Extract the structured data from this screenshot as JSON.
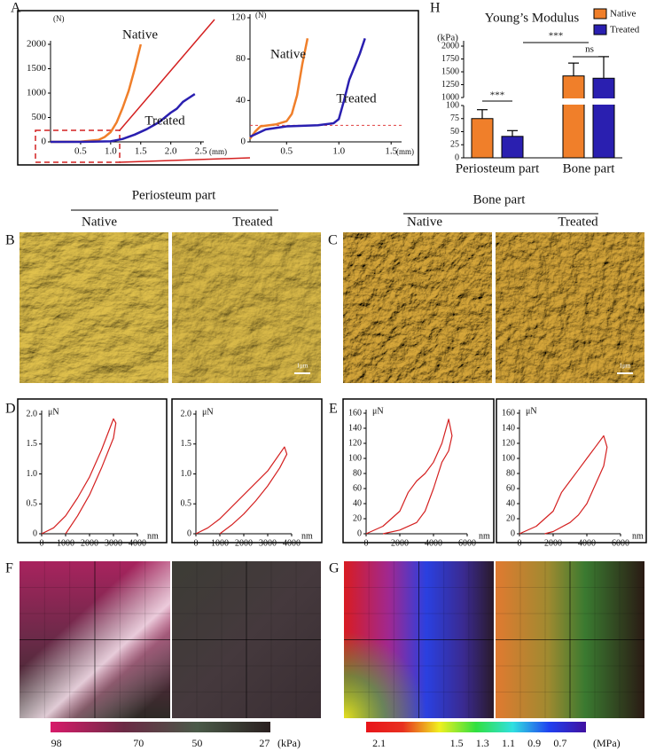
{
  "panel_letters": [
    "A",
    "B",
    "C",
    "D",
    "E",
    "F",
    "G",
    "H"
  ],
  "afm": {
    "periosteum": {
      "title": "Periosteum part",
      "conditions": [
        "Native",
        "Treated"
      ],
      "scale_bar": "1μm"
    },
    "bone": {
      "title": "Bone part",
      "conditions": [
        "Native",
        "Treated"
      ],
      "scale_bar": "1μm"
    }
  },
  "chart_data": [
    {
      "type": "line",
      "xlabel": "(mm)",
      "ylabel": "(N)",
      "xlim": [
        0,
        2.55
      ],
      "ylim": [
        0,
        2000
      ],
      "xticks": [
        0.5,
        {
          "value": 1,
          "label": "1.0"
        },
        1.5,
        {
          "value": 2,
          "label": "2.0"
        },
        2.5
      ],
      "yticks": [
        0,
        500,
        1000,
        1500,
        2000
      ],
      "series": [
        {
          "name": "Native",
          "color": "#f07f2a",
          "x": [
            0,
            0.5,
            0.8,
            0.9,
            1.0,
            1.1,
            1.2,
            1.3,
            1.4,
            1.5
          ],
          "values": [
            0,
            5,
            40,
            100,
            200,
            400,
            700,
            1050,
            1500,
            2000
          ]
        },
        {
          "name": "Treated",
          "color": "#2a1fb0",
          "x": [
            0,
            0.5,
            1.0,
            1.2,
            1.4,
            1.6,
            1.8,
            2.0,
            2.1,
            2.2,
            2.3,
            2.4
          ],
          "values": [
            0,
            0,
            10,
            60,
            150,
            260,
            400,
            600,
            680,
            820,
            900,
            980
          ]
        }
      ]
    },
    {
      "type": "line",
      "xlabel": "(mm)",
      "ylabel": "(N)",
      "xlim": [
        0.15,
        1.6
      ],
      "ylim": [
        0,
        120
      ],
      "xticks": [
        0.5,
        {
          "value": 1,
          "label": "1.0"
        },
        1.5
      ],
      "yticks": [
        0,
        40,
        80,
        120
      ],
      "reference_line": 16,
      "series": [
        {
          "name": "Native",
          "color": "#f07f2a",
          "x": [
            0.15,
            0.2,
            0.25,
            0.4,
            0.5,
            0.55,
            0.6,
            0.65,
            0.7
          ],
          "values": [
            3,
            10,
            15,
            17,
            20,
            27,
            45,
            75,
            100
          ]
        },
        {
          "name": "Treated",
          "color": "#2a1fb0",
          "x": [
            0.15,
            0.3,
            0.5,
            0.8,
            0.95,
            1.0,
            1.05,
            1.1,
            1.2,
            1.25
          ],
          "values": [
            5,
            12,
            15,
            16,
            18,
            22,
            40,
            60,
            85,
            100
          ]
        }
      ]
    },
    {
      "type": "bar",
      "title": "Young’s Modulus",
      "ylabel": "(kPa)",
      "categories": [
        "Periosteum part",
        "Bone part"
      ],
      "ylim": [
        0,
        2000
      ],
      "ybreak": [
        100,
        1000
      ],
      "yticks": [
        0,
        25,
        50,
        75,
        100,
        1000,
        1250,
        1500,
        1750,
        2000
      ],
      "legend": "top-right",
      "series": [
        {
          "name": "Native",
          "color": "#f07f2a",
          "values": [
            75,
            1420
          ],
          "errors": [
            17,
            250
          ]
        },
        {
          "name": "Treated",
          "color": "#2a1fb0",
          "values": [
            41,
            1375
          ],
          "errors": [
            11,
            420
          ]
        }
      ],
      "significance": [
        "***",
        "***",
        "ns"
      ]
    },
    {
      "type": "line",
      "xlabel": "nm",
      "ylabel": "μN",
      "xlim": [
        0,
        4000
      ],
      "ylim": [
        0,
        2
      ],
      "xticks": [
        0,
        1000,
        2000,
        3000,
        4000
      ],
      "yticks": [
        0,
        0.5,
        {
          "value": 1,
          "label": "1.0"
        },
        1.5,
        {
          "value": 2,
          "label": "2.0"
        }
      ],
      "series": [
        {
          "color": "#d42020",
          "x": [
            0,
            500,
            1000,
            1500,
            2000,
            2500,
            3000,
            3100,
            3000,
            2500,
            2000,
            1500,
            1000
          ],
          "values": [
            0,
            0.1,
            0.3,
            0.6,
            0.95,
            1.4,
            1.92,
            1.85,
            1.6,
            1.1,
            0.65,
            0.3,
            0
          ]
        }
      ]
    },
    {
      "type": "line",
      "xlabel": "nm",
      "ylabel": "μN",
      "xlim": [
        0,
        4000
      ],
      "ylim": [
        0,
        2
      ],
      "xticks": [
        0,
        1000,
        2000,
        3000,
        4000
      ],
      "yticks": [
        0,
        0.5,
        {
          "value": 1,
          "label": "1.0"
        },
        1.5,
        {
          "value": 2,
          "label": "2.0"
        }
      ],
      "series": [
        {
          "color": "#d42020",
          "x": [
            0,
            500,
            1000,
            1500,
            2000,
            2500,
            3000,
            3700,
            3800,
            3500,
            3000,
            2500,
            2000,
            1500,
            1000
          ],
          "values": [
            0,
            0.1,
            0.25,
            0.45,
            0.65,
            0.85,
            1.05,
            1.45,
            1.33,
            1.1,
            0.8,
            0.55,
            0.33,
            0.15,
            0
          ]
        }
      ]
    },
    {
      "type": "line",
      "xlabel": "nm",
      "ylabel": "μN",
      "xlim": [
        0,
        6000
      ],
      "ylim": [
        0,
        160
      ],
      "xticks": [
        0,
        2000,
        4000,
        6000
      ],
      "yticks": [
        0,
        20,
        40,
        60,
        80,
        100,
        120,
        140,
        160
      ],
      "series": [
        {
          "color": "#d42020",
          "x": [
            0,
            1000,
            2000,
            2500,
            3000,
            3500,
            4000,
            4500,
            4900,
            5100,
            4900,
            4500,
            4000,
            3500,
            3000,
            2000,
            1000
          ],
          "values": [
            0,
            10,
            30,
            55,
            70,
            80,
            95,
            120,
            152,
            130,
            110,
            95,
            60,
            30,
            15,
            5,
            0
          ]
        }
      ]
    },
    {
      "type": "line",
      "xlabel": "nm",
      "ylabel": "μN",
      "xlim": [
        0,
        6000
      ],
      "ylim": [
        0,
        160
      ],
      "xticks": [
        0,
        2000,
        4000,
        6000
      ],
      "yticks": [
        0,
        20,
        40,
        60,
        80,
        100,
        120,
        140,
        160
      ],
      "series": [
        {
          "color": "#d42020",
          "x": [
            0,
            1000,
            2000,
            2500,
            3000,
            3500,
            4000,
            4500,
            5000,
            5200,
            5000,
            4500,
            4000,
            3500,
            3000,
            2000,
            1500
          ],
          "values": [
            0,
            10,
            30,
            55,
            70,
            85,
            100,
            115,
            130,
            115,
            90,
            65,
            40,
            25,
            15,
            3,
            0
          ]
        }
      ]
    },
    {
      "type": "colorbar",
      "unit": "(kPa)",
      "clim": [
        100,
        25
      ],
      "ticks": [
        98,
        70,
        50,
        27
      ],
      "colors": [
        "#d81b6a",
        "#6b2a45",
        "#4a5a48",
        "#2a2020"
      ]
    },
    {
      "type": "colorbar",
      "unit": "(MPa)",
      "clim": [
        2.2,
        0.5
      ],
      "ticks": [
        2.1,
        1.5,
        1.3,
        1.1,
        0.9,
        0.7
      ],
      "colors": [
        "#e8141a",
        "#e83020",
        "#f0f020",
        "#30e040",
        "#30e0e0",
        "#2040f0",
        "#4010a0"
      ]
    }
  ]
}
